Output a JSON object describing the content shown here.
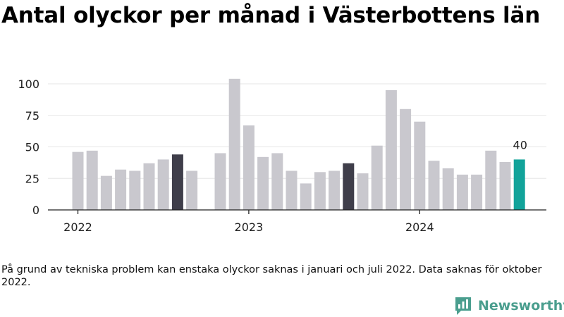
{
  "title": "Antal olyckor per månad i Västerbottens län",
  "footnote": "På grund av tekniska problem kan enstaka olyckor saknas i januari och juli 2022. Data saknas för oktober 2022.",
  "brand": {
    "name": "Newsworthy",
    "icon": "newsworthy-logo-icon",
    "color": "#4a9e8e"
  },
  "colors": {
    "bar": "#c9c8ce",
    "highlight": "#3f3e4a",
    "latest": "#12a39a",
    "axis": "#222222",
    "grid": "#e6e6e6"
  },
  "chart_data": {
    "type": "bar",
    "title": "Antal olyckor per månad i Västerbottens län",
    "xlabel": "",
    "ylabel": "",
    "ylim": [
      0,
      100
    ],
    "yticks": [
      0,
      25,
      50,
      75,
      100
    ],
    "year_labels": [
      "2022",
      "2023",
      "2024"
    ],
    "highlight_color": "#3f3e4a",
    "latest_color": "#12a39a",
    "latest_label": "40",
    "points": [
      {
        "year": 2022,
        "month": 1,
        "value": 46
      },
      {
        "year": 2022,
        "month": 2,
        "value": 47
      },
      {
        "year": 2022,
        "month": 3,
        "value": 27
      },
      {
        "year": 2022,
        "month": 4,
        "value": 32
      },
      {
        "year": 2022,
        "month": 5,
        "value": 31
      },
      {
        "year": 2022,
        "month": 6,
        "value": 37
      },
      {
        "year": 2022,
        "month": 7,
        "value": 40
      },
      {
        "year": 2022,
        "month": 8,
        "value": 44,
        "highlight": true
      },
      {
        "year": 2022,
        "month": 9,
        "value": 31
      },
      {
        "year": 2022,
        "month": 10,
        "value": null
      },
      {
        "year": 2022,
        "month": 11,
        "value": 45
      },
      {
        "year": 2022,
        "month": 12,
        "value": 104
      },
      {
        "year": 2023,
        "month": 1,
        "value": 67
      },
      {
        "year": 2023,
        "month": 2,
        "value": 42
      },
      {
        "year": 2023,
        "month": 3,
        "value": 45
      },
      {
        "year": 2023,
        "month": 4,
        "value": 31
      },
      {
        "year": 2023,
        "month": 5,
        "value": 21
      },
      {
        "year": 2023,
        "month": 6,
        "value": 30
      },
      {
        "year": 2023,
        "month": 7,
        "value": 31
      },
      {
        "year": 2023,
        "month": 8,
        "value": 37,
        "highlight": true
      },
      {
        "year": 2023,
        "month": 9,
        "value": 29
      },
      {
        "year": 2023,
        "month": 10,
        "value": 51
      },
      {
        "year": 2023,
        "month": 11,
        "value": 95
      },
      {
        "year": 2023,
        "month": 12,
        "value": 80
      },
      {
        "year": 2024,
        "month": 1,
        "value": 70
      },
      {
        "year": 2024,
        "month": 2,
        "value": 39
      },
      {
        "year": 2024,
        "month": 3,
        "value": 33
      },
      {
        "year": 2024,
        "month": 4,
        "value": 28
      },
      {
        "year": 2024,
        "month": 5,
        "value": 28
      },
      {
        "year": 2024,
        "month": 6,
        "value": 47
      },
      {
        "year": 2024,
        "month": 7,
        "value": 38
      },
      {
        "year": 2024,
        "month": 8,
        "value": 40,
        "latest": true
      }
    ]
  }
}
